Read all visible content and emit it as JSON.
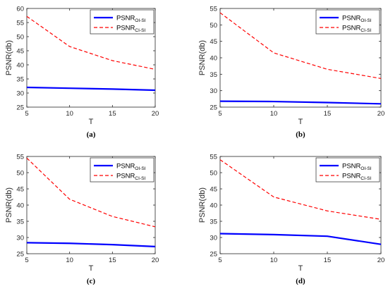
{
  "chart_data": [
    {
      "type": "line",
      "caption": "(a)",
      "xlabel": "T",
      "ylabel": "PSNR(db)",
      "x": [
        5,
        10,
        15,
        20
      ],
      "xlim": [
        5,
        20
      ],
      "xticks": [
        5,
        10,
        15,
        20
      ],
      "ylim": [
        25,
        60
      ],
      "yticks": [
        25,
        30,
        35,
        40,
        45,
        50,
        55,
        60
      ],
      "legend_position": "top-right",
      "series": [
        {
          "name": "PSNR",
          "sub": "OI-SI",
          "color": "#0000ff",
          "style": "solid",
          "values": [
            32.0,
            31.7,
            31.4,
            31.0
          ]
        },
        {
          "name": "PSNR",
          "sub": "CI-SI",
          "color": "#ff0000",
          "style": "dashed",
          "values": [
            57.2,
            46.5,
            41.5,
            38.4
          ]
        }
      ]
    },
    {
      "type": "line",
      "caption": "(b)",
      "xlabel": "T",
      "ylabel": "PSNR(db)",
      "x": [
        5,
        10,
        15,
        20
      ],
      "xlim": [
        5,
        20
      ],
      "xticks": [
        5,
        10,
        15,
        20
      ],
      "ylim": [
        25,
        55
      ],
      "yticks": [
        25,
        30,
        35,
        40,
        45,
        50,
        55
      ],
      "legend_position": "top-right",
      "series": [
        {
          "name": "PSNR",
          "sub": "OI-SI",
          "color": "#0000ff",
          "style": "solid",
          "values": [
            26.8,
            26.7,
            26.4,
            26.0
          ]
        },
        {
          "name": "PSNR",
          "sub": "CI-SI",
          "color": "#ff0000",
          "style": "dashed",
          "values": [
            53.7,
            41.5,
            36.5,
            33.7
          ]
        }
      ]
    },
    {
      "type": "line",
      "caption": "(c)",
      "xlabel": "T",
      "ylabel": "PSNR(db)",
      "x": [
        5,
        10,
        15,
        20
      ],
      "xlim": [
        5,
        20
      ],
      "xticks": [
        5,
        10,
        15,
        20
      ],
      "ylim": [
        25,
        55
      ],
      "yticks": [
        25,
        30,
        35,
        40,
        45,
        50,
        55
      ],
      "legend_position": "top-right",
      "series": [
        {
          "name": "PSNR",
          "sub": "OI-SI",
          "color": "#0000ff",
          "style": "solid",
          "values": [
            28.4,
            28.2,
            27.8,
            27.2
          ]
        },
        {
          "name": "PSNR",
          "sub": "CI-SI",
          "color": "#ff0000",
          "style": "dashed",
          "values": [
            54.5,
            41.8,
            36.5,
            33.3
          ]
        }
      ]
    },
    {
      "type": "line",
      "caption": "(d)",
      "xlabel": "T",
      "ylabel": "PSNR(db)",
      "x": [
        5,
        10,
        15,
        20
      ],
      "xlim": [
        5,
        20
      ],
      "xticks": [
        5,
        10,
        15,
        20
      ],
      "ylim": [
        25,
        55
      ],
      "yticks": [
        25,
        30,
        35,
        40,
        45,
        50,
        55
      ],
      "legend_position": "top-right",
      "series": [
        {
          "name": "PSNR",
          "sub": "OI-SI",
          "color": "#0000ff",
          "style": "solid",
          "values": [
            31.2,
            30.9,
            30.4,
            27.9
          ]
        },
        {
          "name": "PSNR",
          "sub": "CI-SI",
          "color": "#ff0000",
          "style": "dashed",
          "values": [
            54.0,
            42.5,
            38.2,
            35.6
          ]
        }
      ]
    }
  ]
}
